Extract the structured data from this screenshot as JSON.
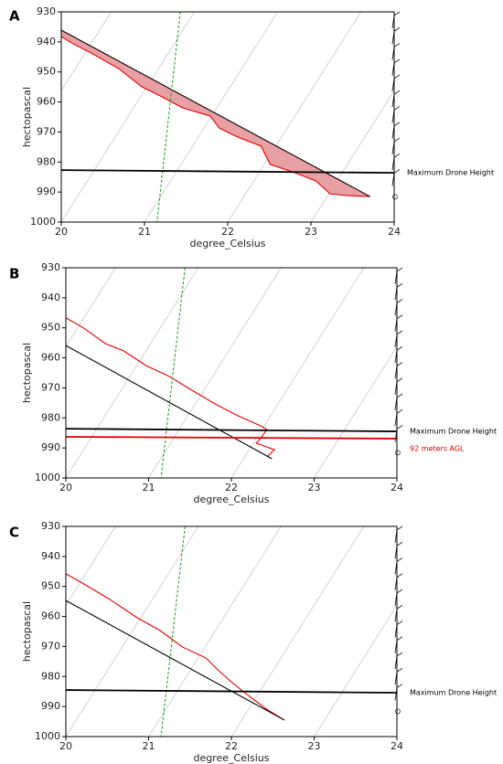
{
  "chart_data": [
    {
      "type": "line",
      "panel_label": "A",
      "xlabel": "degree_Celsius",
      "ylabel": "hectopascal",
      "xlim": [
        20,
        24
      ],
      "ylim": [
        930,
        1000
      ],
      "y_inverted": true,
      "xticks": [
        20,
        21,
        22,
        23,
        24
      ],
      "yticks": [
        930,
        940,
        950,
        960,
        970,
        980,
        990,
        1000
      ],
      "fill_between": {
        "series": [
          0,
          1
        ],
        "color": "#e8a0a4"
      },
      "series": [
        {
          "color": "#e00000",
          "x": [
            20,
            20.14,
            20.36,
            20.69,
            20.97,
            21.19,
            21.46,
            21.79,
            21.9,
            22.12,
            22.4,
            22.51,
            22.78,
            23.06,
            23.23,
            23.45,
            23.71
          ],
          "values": [
            938.2,
            940.6,
            943.7,
            948.9,
            955,
            958,
            962,
            964.7,
            968.7,
            971.7,
            974.7,
            980.8,
            983.3,
            986.3,
            990.6,
            991.2,
            991.5
          ]
        },
        {
          "color": "#000000",
          "x": [
            20,
            23.71
          ],
          "values": [
            936.1,
            991.5
          ]
        },
        {
          "color": "#2ca02c",
          "dashed": true,
          "x": [
            21.43,
            21.15
          ],
          "values": [
            930,
            1000
          ]
        },
        {
          "color": "#000000",
          "width": 1.8,
          "label": "Maximum Drone Height",
          "x": [
            20,
            24
          ],
          "values": [
            982.7,
            983.6
          ]
        }
      ]
    },
    {
      "type": "line",
      "panel_label": "B",
      "xlabel": "degree_Celsius",
      "ylabel": "hectopascal",
      "xlim": [
        20,
        24
      ],
      "ylim": [
        930,
        1000
      ],
      "y_inverted": true,
      "xticks": [
        20,
        21,
        22,
        23,
        24
      ],
      "yticks": [
        930,
        940,
        950,
        960,
        970,
        980,
        990,
        1000
      ],
      "series": [
        {
          "color": "#e00000",
          "x": [
            20,
            20.2,
            20.48,
            20.7,
            20.97,
            21.25,
            21.47,
            21.8,
            22.08,
            22.35,
            22.43,
            22.35,
            22.3,
            22.52,
            22.43
          ],
          "values": [
            946.7,
            949.8,
            955.3,
            957.7,
            962.6,
            966.2,
            969.9,
            975.3,
            979.3,
            982.6,
            983.9,
            986.9,
            988.4,
            990.6,
            993
          ]
        },
        {
          "color": "#000000",
          "x": [
            20,
            22.49
          ],
          "values": [
            955.9,
            993.6
          ]
        },
        {
          "color": "#2ca02c",
          "dashed": true,
          "x": [
            21.44,
            21.15
          ],
          "values": [
            930,
            1000
          ]
        },
        {
          "color": "#000000",
          "width": 1.8,
          "label": "Maximum Drone Height",
          "x": [
            20,
            24
          ],
          "values": [
            983.6,
            984.5
          ]
        },
        {
          "color": "#e00000",
          "width": 1.8,
          "label": "92 meters AGL",
          "x": [
            20,
            24
          ],
          "values": [
            986.3,
            986.9
          ]
        }
      ]
    },
    {
      "type": "line",
      "panel_label": "C",
      "xlabel": "degree_Celsius",
      "ylabel": "hectopascal",
      "xlim": [
        20,
        24
      ],
      "ylim": [
        930,
        1000
      ],
      "y_inverted": true,
      "xticks": [
        20,
        21,
        22,
        23,
        24
      ],
      "yticks": [
        930,
        940,
        950,
        960,
        970,
        980,
        990,
        1000
      ],
      "series": [
        {
          "color": "#e00000",
          "x": [
            20,
            20.2,
            20.53,
            20.86,
            21.14,
            21.41,
            21.69,
            21.86,
            22.02,
            22.19,
            22.41,
            22.64
          ],
          "values": [
            945.8,
            948.9,
            954.3,
            960.4,
            964.7,
            970.2,
            973.8,
            978.4,
            982.3,
            986,
            990.6,
            994.5
          ]
        },
        {
          "color": "#000000",
          "x": [
            20,
            22.64
          ],
          "values": [
            954.7,
            994.5
          ]
        },
        {
          "color": "#2ca02c",
          "dashed": true,
          "x": [
            21.44,
            21.15
          ],
          "values": [
            930,
            1000
          ]
        },
        {
          "color": "#000000",
          "width": 1.8,
          "label": "Maximum Drone Height",
          "x": [
            20,
            24
          ],
          "values": [
            984.5,
            985.4
          ]
        }
      ]
    }
  ]
}
